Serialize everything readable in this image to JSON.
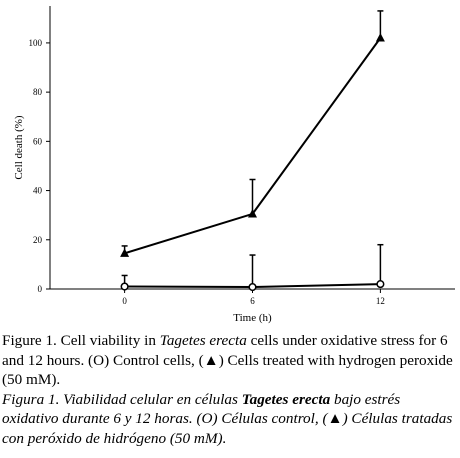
{
  "chart_data": {
    "type": "line",
    "x": [
      0,
      6,
      12
    ],
    "xticks": [
      "0",
      "6",
      "12"
    ],
    "xlabel": "Time (h)",
    "ylabel": "Cell death (%)",
    "yticks": [
      "0",
      "20",
      "40",
      "60",
      "80",
      "100"
    ],
    "ylim": [
      0,
      115
    ],
    "grid": false,
    "series": [
      {
        "marker": "circle-open",
        "values": [
          1,
          0.8,
          2
        ],
        "error": [
          4.5,
          13,
          16
        ]
      },
      {
        "marker": "triangle-filled",
        "values": [
          14.5,
          30.5,
          102
        ],
        "error": [
          3,
          14,
          11
        ]
      }
    ]
  },
  "caption": {
    "en": {
      "prefix": "Figure 1. Cell viability in ",
      "species": "Tagetes erecta",
      "middle": " cells under oxidative stress for 6 and 12 hours. (",
      "control_symbol": "O",
      "control_text": ") Control cells, (",
      "treated_symbol": "▲",
      "suffix": ") Cells treated with hydrogen peroxide (50 mM)."
    },
    "es": {
      "prefix": "Figura 1. Viabilidad celular en células ",
      "species": "Tagetes erecta",
      "middle": " bajo estrés oxidativo durante 6 y 12 horas. (",
      "control_symbol": "O",
      "control_text": ") Células control, (",
      "treated_symbol": "▲",
      "suffix": ") Células tratadas con peróxido de hidrógeno (50 mM)."
    }
  }
}
